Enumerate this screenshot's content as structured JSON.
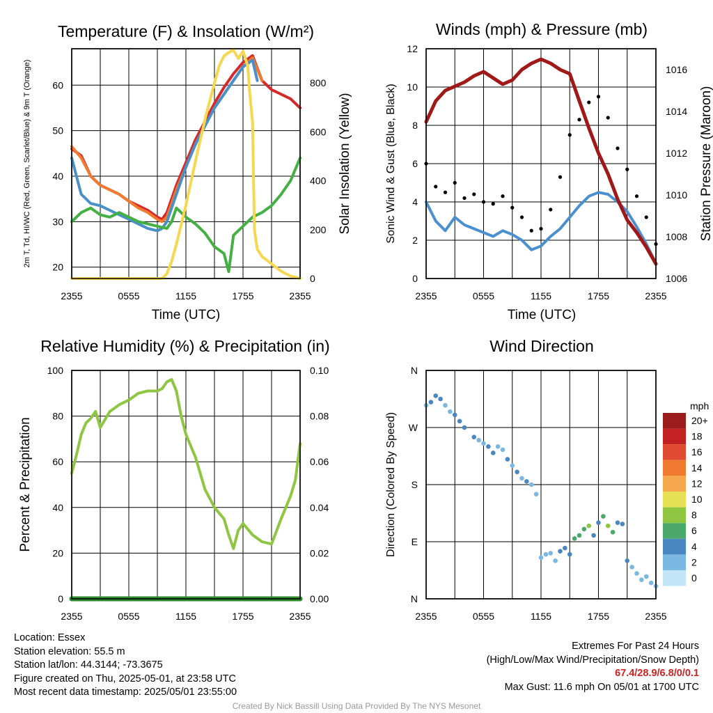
{
  "colors": {
    "temp_red": "#d42a2a",
    "temp_green": "#44b044",
    "temp_blue": "#4a90c8",
    "temp_orange": "#f07a30",
    "insolation_yellow": "#f5d850",
    "wind_blue": "#4a90d0",
    "gust_black": "#000000",
    "pressure_maroon": "#a01818",
    "rh_green": "#8ec642",
    "precip_green": "#2d8a2d",
    "extremes_red": "#cc2222"
  },
  "chart_data": [
    {
      "id": "temperature",
      "type": "line",
      "title": "Temperature (F) & Insolation (W/m²)",
      "xlabel": "Time (UTC)",
      "ylabel_left": "2m T, Td, HI/WC (Red, Green, Scarlet/Blue) & 9m T (Orange)",
      "ylabel_right": "Solar Insolation (Yellow)",
      "x_ticks": [
        "2355",
        "0555",
        "1155",
        "1755",
        "2355"
      ],
      "x_range_hours": [
        0,
        24
      ],
      "ylim_left": [
        17.5,
        68
      ],
      "yticks_left": [
        20,
        30,
        40,
        50,
        60
      ],
      "ylim_right": [
        0,
        940
      ],
      "yticks_right": [
        0,
        200,
        400,
        600,
        800
      ],
      "grid": true,
      "series": [
        {
          "color": "#d42a2a",
          "axis": "left",
          "x": [
            0,
            1,
            2,
            3,
            4,
            5,
            6,
            7,
            8,
            9,
            9.5,
            10,
            11,
            12,
            13,
            14,
            15,
            16,
            17,
            18,
            19,
            20,
            21,
            22,
            23,
            24
          ],
          "y": [
            46,
            44.5,
            40,
            38,
            37,
            36,
            34.5,
            33.5,
            32.5,
            31,
            30.5,
            32,
            38,
            43,
            48,
            52,
            56,
            59.5,
            62.5,
            65,
            66.5,
            61,
            59,
            58,
            57,
            55
          ]
        },
        {
          "color": "#f07a30",
          "axis": "left",
          "x": [
            0,
            1,
            2,
            3,
            4,
            5,
            6,
            7,
            8,
            9,
            9.5,
            10,
            11,
            12,
            13,
            14,
            15,
            16,
            17,
            18,
            19,
            20
          ],
          "y": [
            46.5,
            44,
            40,
            38,
            37,
            36,
            34.5,
            33,
            32,
            30.5,
            30,
            31,
            37,
            42,
            47,
            51,
            55,
            58,
            61,
            64,
            66,
            61
          ]
        },
        {
          "color": "#4a90c8",
          "axis": "left",
          "x": [
            0,
            0.5,
            1,
            1.5,
            2,
            3,
            4,
            5,
            6,
            7,
            8,
            9,
            9.5,
            10,
            11,
            12,
            13,
            14,
            15,
            16,
            17,
            18,
            19,
            19.5
          ],
          "y": [
            44,
            40,
            36,
            35,
            34,
            33.5,
            32.5,
            31.5,
            30.5,
            29.5,
            28.5,
            28,
            28.5,
            30,
            36,
            42,
            47,
            51,
            55,
            58,
            61,
            64,
            65.5,
            61
          ]
        },
        {
          "color": "#44b044",
          "axis": "left",
          "x": [
            0,
            0.5,
            1,
            2,
            3,
            4,
            5,
            6,
            7,
            8,
            9,
            10,
            10.5,
            11,
            12,
            13,
            14,
            15,
            16,
            16.5,
            17,
            18,
            19,
            20,
            21,
            22,
            23,
            24
          ],
          "y": [
            30,
            31,
            32,
            33,
            31.5,
            31,
            32,
            31,
            30,
            29.5,
            29,
            28.5,
            30,
            33,
            31,
            29.5,
            27.5,
            24.5,
            23,
            19,
            27,
            29,
            31,
            32,
            33.5,
            36,
            39,
            44
          ]
        },
        {
          "color": "#f5d850",
          "axis": "right",
          "x": [
            0,
            9.5,
            10,
            10.5,
            11,
            12,
            13,
            14,
            15,
            15.5,
            16,
            16.5,
            17,
            17.5,
            18,
            18.5,
            18.7,
            19,
            19.2,
            19.5,
            20,
            21,
            22,
            23,
            24
          ],
          "y": [
            0,
            0,
            20,
            70,
            140,
            300,
            480,
            650,
            800,
            870,
            910,
            925,
            935,
            900,
            930,
            870,
            760,
            640,
            200,
            120,
            90,
            60,
            30,
            10,
            0
          ]
        }
      ]
    },
    {
      "id": "wind",
      "type": "line",
      "title": "Winds (mph) & Pressure (mb)",
      "xlabel": "Time (UTC)",
      "ylabel_left": "Sonic Wind & Gust (Blue, Black)",
      "ylabel_right": "Station Pressure (Maroon)",
      "x_ticks": [
        "2355",
        "0555",
        "1155",
        "1755",
        "2355"
      ],
      "x_range_hours": [
        0,
        24
      ],
      "ylim_left": [
        0,
        12
      ],
      "yticks_left": [
        0,
        2,
        4,
        6,
        8,
        10,
        12
      ],
      "ylim_right": [
        1006,
        1017
      ],
      "yticks_right": [
        1006,
        1008,
        1010,
        1012,
        1014,
        1016
      ],
      "grid": true,
      "series": [
        {
          "color": "#4a90d0",
          "axis": "left",
          "x": [
            0,
            1,
            2,
            3,
            4,
            5,
            6,
            7,
            8,
            9,
            10,
            11,
            12,
            13,
            14,
            15,
            16,
            17,
            18,
            19,
            20,
            21,
            22,
            23,
            24
          ],
          "y": [
            4,
            3,
            2.5,
            3.2,
            2.8,
            2.6,
            2.4,
            2.2,
            2.5,
            2.3,
            2,
            1.5,
            1.7,
            2.2,
            2.6,
            3.2,
            3.8,
            4.3,
            4.5,
            4.4,
            4,
            3.5,
            2.7,
            1.8,
            0.8
          ]
        },
        {
          "color": "#000000",
          "axis": "left",
          "x": [
            0,
            1,
            2,
            3,
            4,
            5,
            6,
            7,
            8,
            9,
            10,
            11,
            12,
            13,
            14,
            15,
            16,
            17,
            18,
            19,
            20,
            21,
            22,
            23,
            24
          ],
          "y": [
            6,
            4.8,
            4.5,
            5,
            4.2,
            4.4,
            4,
            3.9,
            4.3,
            3.7,
            3.2,
            2.5,
            2.6,
            3.6,
            5.3,
            7.5,
            8.3,
            9.2,
            9.5,
            8.4,
            6.8,
            5.7,
            4.3,
            3.2,
            1.8
          ]
        },
        {
          "color": "#a01818",
          "axis": "right",
          "x": [
            0,
            1,
            2,
            3,
            4,
            5,
            6,
            7,
            8,
            9,
            10,
            11,
            12,
            13,
            14,
            15,
            16,
            17,
            18,
            19,
            20,
            21,
            22,
            23,
            24
          ],
          "y": [
            1013.5,
            1014.5,
            1015,
            1015.2,
            1015.4,
            1015.7,
            1015.9,
            1015.6,
            1015.3,
            1015.5,
            1016,
            1016.3,
            1016.5,
            1016.3,
            1016,
            1015.8,
            1014.5,
            1013.2,
            1012,
            1011,
            1009.8,
            1008.8,
            1008.2,
            1007.5,
            1006.7
          ]
        }
      ]
    },
    {
      "id": "humidity",
      "type": "line",
      "title": "Relative Humidity (%) & Precipitation (in)",
      "ylabel_left": "Percent & Precipitation",
      "x_ticks": [
        "2355",
        "0555",
        "1155",
        "1755",
        "2355"
      ],
      "x_range_hours": [
        0,
        24
      ],
      "ylim_left": [
        0,
        100
      ],
      "yticks_left": [
        0,
        20,
        40,
        60,
        80,
        100
      ],
      "ylim_right": [
        0,
        0.1
      ],
      "yticks_right": [
        "0.00",
        "0.02",
        "0.04",
        "0.06",
        "0.08",
        "0.10"
      ],
      "grid": true,
      "series": [
        {
          "color": "#8ec642",
          "axis": "left",
          "x": [
            0,
            0.5,
            1,
            1.5,
            2,
            2.5,
            3,
            4,
            5,
            6,
            7,
            8,
            9,
            9.5,
            10,
            10.5,
            11,
            11.5,
            12,
            13,
            13.5,
            14,
            15,
            16,
            16.5,
            17,
            17.5,
            18,
            19,
            20,
            21,
            22,
            22.5,
            23,
            23.5,
            24
          ],
          "y": [
            55,
            63,
            72,
            77,
            79,
            82,
            75,
            82,
            85,
            87,
            90,
            91,
            91,
            92,
            95,
            96,
            91,
            80,
            72,
            62,
            55,
            48,
            40,
            35,
            28,
            22,
            30,
            33,
            28,
            25,
            24,
            35,
            40,
            45,
            52,
            68
          ]
        },
        {
          "color": "#2d8a2d",
          "axis": "right",
          "x": [
            0,
            24
          ],
          "y": [
            0,
            0
          ]
        }
      ]
    },
    {
      "id": "direction",
      "type": "scatter",
      "title": "Wind Direction",
      "ylabel_left": "Direction (Colored By Speed)",
      "x_ticks": [
        "2355",
        "0555",
        "1155",
        "1755",
        "2355"
      ],
      "x_range_hours": [
        0,
        24
      ],
      "ylim_left": [
        0,
        360
      ],
      "ytick_labels": [
        "N",
        "E",
        "S",
        "W",
        "N"
      ],
      "ytick_values": [
        0,
        90,
        180,
        270,
        360
      ],
      "grid": true,
      "legend": {
        "title": "mph",
        "placement": "right",
        "labels": [
          "20+",
          "18",
          "16",
          "14",
          "12",
          "10",
          "8",
          "6",
          "4",
          "2",
          "0"
        ],
        "colors": [
          "#9b1c1c",
          "#c42222",
          "#e04a30",
          "#f07a30",
          "#f5a84c",
          "#e6e055",
          "#8ec642",
          "#4aa86a",
          "#4a86c0",
          "#7ab8e2",
          "#c2e6f8"
        ]
      },
      "series": [
        {
          "x": [
            0,
            0.5,
            1,
            1.5,
            2,
            2.5,
            3,
            3.5,
            4,
            5,
            5.5,
            6,
            6.5,
            7,
            7.5,
            8,
            8.5,
            9,
            9.5,
            10,
            10.5,
            11,
            11.5,
            12,
            12.5,
            13,
            13.5,
            14,
            14.5,
            15,
            15.5,
            16,
            16.5,
            17,
            17.5,
            18,
            18.5,
            19,
            19.5,
            20,
            20.5,
            21,
            21.5,
            22,
            22.5,
            23,
            23.5,
            24
          ],
          "y": [
            305,
            310,
            320,
            315,
            305,
            295,
            290,
            280,
            270,
            255,
            250,
            245,
            240,
            230,
            240,
            235,
            220,
            210,
            200,
            190,
            185,
            180,
            165,
            65,
            70,
            72,
            60,
            75,
            80,
            70,
            95,
            100,
            110,
            115,
            100,
            120,
            130,
            115,
            105,
            120,
            118,
            60,
            50,
            40,
            30,
            35,
            25,
            20
          ],
          "speed": [
            2,
            3,
            4,
            3,
            2,
            2,
            3,
            3,
            4,
            3,
            2,
            2,
            3,
            3,
            2,
            2,
            3,
            2,
            3,
            2,
            3,
            2,
            2,
            2,
            1,
            2,
            2,
            3,
            4,
            4,
            5,
            5,
            6,
            7,
            4,
            4,
            6,
            7,
            5,
            4,
            3,
            3,
            2,
            2,
            2,
            2,
            2,
            1
          ]
        }
      ]
    }
  ],
  "footer": {
    "location": "Location: Essex",
    "elevation": "Station elevation: 55.5 m",
    "latlon": "Station lat/lon: 44.3144; -73.3675",
    "created": "Figure created on Thu, 2025-05-01, at 23:58 UTC",
    "timestamp": "Most recent data timestamp: 2025/05/01 23:55:00",
    "extremes_title": "Extremes For Past 24 Hours",
    "extremes_subtitle": "(High/Low/Max Wind/Precipitation/Snow Depth)",
    "extremes_values": "67.4/28.9/6.8/0/0.1",
    "max_gust": "Max Gust: 11.6 mph On 05/01 at 1700 UTC",
    "credit": "Created By Nick Bassill Using Data Provided By The NYS Mesonet"
  }
}
